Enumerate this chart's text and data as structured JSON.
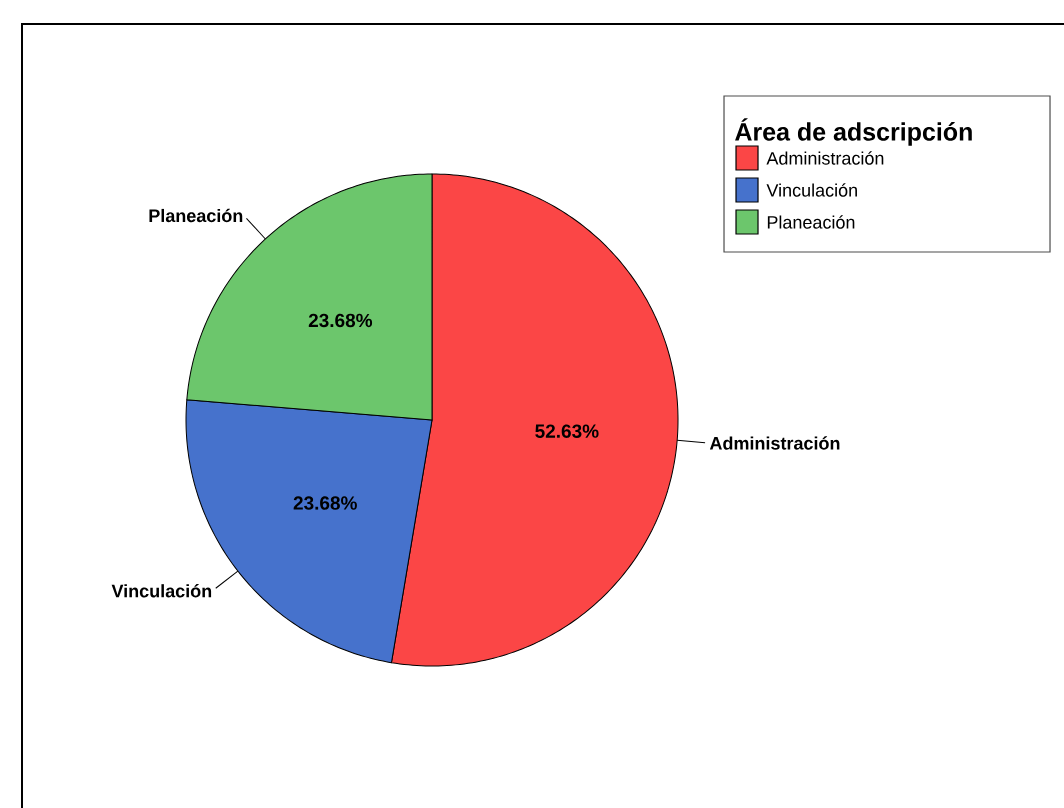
{
  "chart_data": {
    "type": "pie",
    "categories": [
      "Administración",
      "Vinculación",
      "Planeación"
    ],
    "values": [
      52.63,
      23.68,
      23.68
    ],
    "colors": [
      "#fb4646",
      "#4672cc",
      "#6cc66c"
    ],
    "value_labels": [
      "52.63%",
      "23.68%",
      "23.68%"
    ],
    "legend": "top right",
    "legend_title": "Área de adscripción"
  }
}
